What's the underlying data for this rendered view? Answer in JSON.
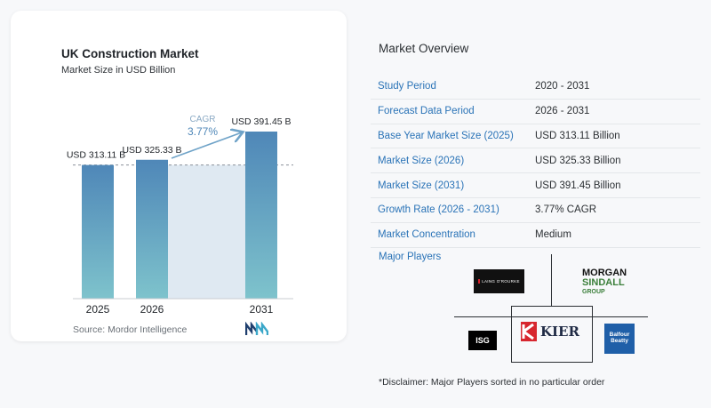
{
  "chart_data": {
    "type": "bar",
    "title": "UK Construction Market",
    "subtitle": "Market Size in USD Billion",
    "categories": [
      "2025",
      "2026",
      "2031"
    ],
    "values": [
      313.11,
      325.33,
      391.45
    ],
    "value_labels": [
      "USD 313.11 B",
      "USD 325.33 B",
      "USD 391.45 B"
    ],
    "cagr_label": "CAGR",
    "cagr_value": "3.77%",
    "colors": {
      "bar_top": "#4f87b8",
      "bar_bottom": "#7ec3cc",
      "band": "#dfe9f2",
      "arrow": "#6fa3c8",
      "cagr": "#4f87b8"
    },
    "grid": false,
    "legend": "none"
  },
  "source": "Source: Mordor Intelligence",
  "logo_icon": "mordor-intelligence-logo",
  "overview": {
    "title": "Market Overview",
    "rows": [
      {
        "key": "Study Period",
        "value": "2020 - 2031"
      },
      {
        "key": "Forecast Data Period",
        "value": "2026 - 2031"
      },
      {
        "key": "Base Year Market Size (2025)",
        "value": "USD 313.11 Billion"
      },
      {
        "key": "Market Size (2026)",
        "value": "USD 325.33 Billion"
      },
      {
        "key": "Market Size (2031)",
        "value": "USD 391.45 Billion"
      },
      {
        "key": "Growth Rate (2026 - 2031)",
        "value": "3.77% CAGR"
      },
      {
        "key": "Market Concentration",
        "value": "Medium"
      }
    ]
  },
  "players": {
    "title": "Major Players",
    "laing": "LAING O'ROURKE",
    "morgan_1": "MORGAN",
    "morgan_2": "SINDALL",
    "morgan_3": "GROUP",
    "isg": "ISG",
    "kier": "KIER",
    "balfour_1": "Balfour",
    "balfour_2": "Beatty"
  },
  "disclaimer": "*Disclaimer: Major Players sorted in no particular order"
}
